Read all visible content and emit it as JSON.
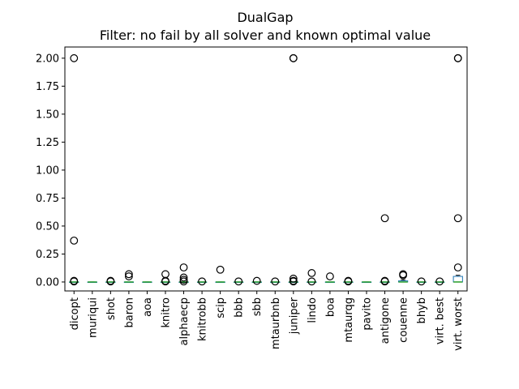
{
  "chart_data": {
    "type": "box",
    "title": "DualGap",
    "subtitle": "Filter: no fail by all solver and known optimal value",
    "xlabel": "",
    "ylabel": "",
    "ylim": [
      -0.08,
      2.1
    ],
    "yticks": [
      "0.00",
      "0.25",
      "0.50",
      "0.75",
      "1.00",
      "1.25",
      "1.50",
      "1.75",
      "2.00"
    ],
    "grid": false,
    "colors": {
      "box": "#1f77b4",
      "median": "#2ca02c",
      "flier": "#000000"
    },
    "categories": [
      "dicopt",
      "muriqui",
      "shot",
      "baron",
      "aoa",
      "knitro",
      "alphaecp",
      "knitrobb",
      "scip",
      "bbb",
      "sbb",
      "mtaurbnb",
      "juniper",
      "lindo",
      "boa",
      "mtaurqg",
      "pavito",
      "antigone",
      "couenne",
      "bhyb",
      "virt. best",
      "virt. worst"
    ],
    "boxes": [
      {
        "q1": 0,
        "median": 0,
        "q3": 0,
        "whislo": 0,
        "whishi": 0,
        "fliers": [
          2.0,
          0.37,
          0.01,
          0.005
        ]
      },
      {
        "q1": 0,
        "median": 0,
        "q3": 0,
        "whislo": 0,
        "whishi": 0,
        "fliers": []
      },
      {
        "q1": 0,
        "median": 0,
        "q3": 0,
        "whislo": 0,
        "whishi": 0,
        "fliers": [
          0.01,
          0.005
        ]
      },
      {
        "q1": 0,
        "median": 0,
        "q3": 0,
        "whislo": 0,
        "whishi": 0,
        "fliers": [
          0.07,
          0.05
        ]
      },
      {
        "q1": 0,
        "median": 0,
        "q3": 0,
        "whislo": 0,
        "whishi": 0,
        "fliers": []
      },
      {
        "q1": 0,
        "median": 0,
        "q3": 0,
        "whislo": 0,
        "whishi": 0,
        "fliers": [
          0.07,
          0.01,
          0.005
        ]
      },
      {
        "q1": 0,
        "median": 0,
        "q3": 0,
        "whislo": 0,
        "whishi": 0,
        "fliers": [
          0.13,
          0.04,
          0.02,
          0.005
        ]
      },
      {
        "q1": 0,
        "median": 0,
        "q3": 0,
        "whislo": 0,
        "whishi": 0,
        "fliers": [
          0.005
        ]
      },
      {
        "q1": 0,
        "median": 0,
        "q3": 0,
        "whislo": 0,
        "whishi": 0,
        "fliers": [
          0.11
        ]
      },
      {
        "q1": 0,
        "median": 0,
        "q3": 0,
        "whislo": 0,
        "whishi": 0,
        "fliers": [
          0.005
        ]
      },
      {
        "q1": 0,
        "median": 0,
        "q3": 0,
        "whislo": 0,
        "whishi": 0,
        "fliers": [
          0.01
        ]
      },
      {
        "q1": 0,
        "median": 0,
        "q3": 0,
        "whislo": 0,
        "whishi": 0,
        "fliers": [
          0.005
        ]
      },
      {
        "q1": 0,
        "median": 0,
        "q3": 0,
        "whislo": 0,
        "whishi": 0,
        "fliers": [
          2.0,
          2.0,
          0.03,
          0.01,
          0.005
        ]
      },
      {
        "q1": 0,
        "median": 0,
        "q3": 0,
        "whislo": 0,
        "whishi": 0,
        "fliers": [
          0.08,
          0.005
        ]
      },
      {
        "q1": 0,
        "median": 0,
        "q3": 0,
        "whislo": 0,
        "whishi": 0,
        "fliers": [
          0.05
        ]
      },
      {
        "q1": 0,
        "median": 0,
        "q3": 0,
        "whislo": 0,
        "whishi": 0,
        "fliers": [
          0.01,
          0.005
        ]
      },
      {
        "q1": 0,
        "median": 0,
        "q3": 0,
        "whislo": 0,
        "whishi": 0,
        "fliers": []
      },
      {
        "q1": 0,
        "median": 0,
        "q3": 0,
        "whislo": 0,
        "whishi": 0,
        "fliers": [
          0.57,
          0.01,
          0.005
        ]
      },
      {
        "q1": 0,
        "median": 0,
        "q3": 0.01,
        "whislo": 0,
        "whishi": 0.02,
        "fliers": [
          0.07,
          0.06
        ]
      },
      {
        "q1": 0,
        "median": 0,
        "q3": 0,
        "whislo": 0,
        "whishi": 0,
        "fliers": [
          0.005
        ]
      },
      {
        "q1": 0,
        "median": 0,
        "q3": 0,
        "whislo": 0,
        "whishi": 0,
        "fliers": [
          0.005
        ]
      },
      {
        "q1": 0,
        "median": 0,
        "q3": 0.05,
        "whislo": 0,
        "whishi": 0.06,
        "fliers": [
          2.0,
          2.0,
          0.57,
          0.13
        ]
      }
    ]
  }
}
